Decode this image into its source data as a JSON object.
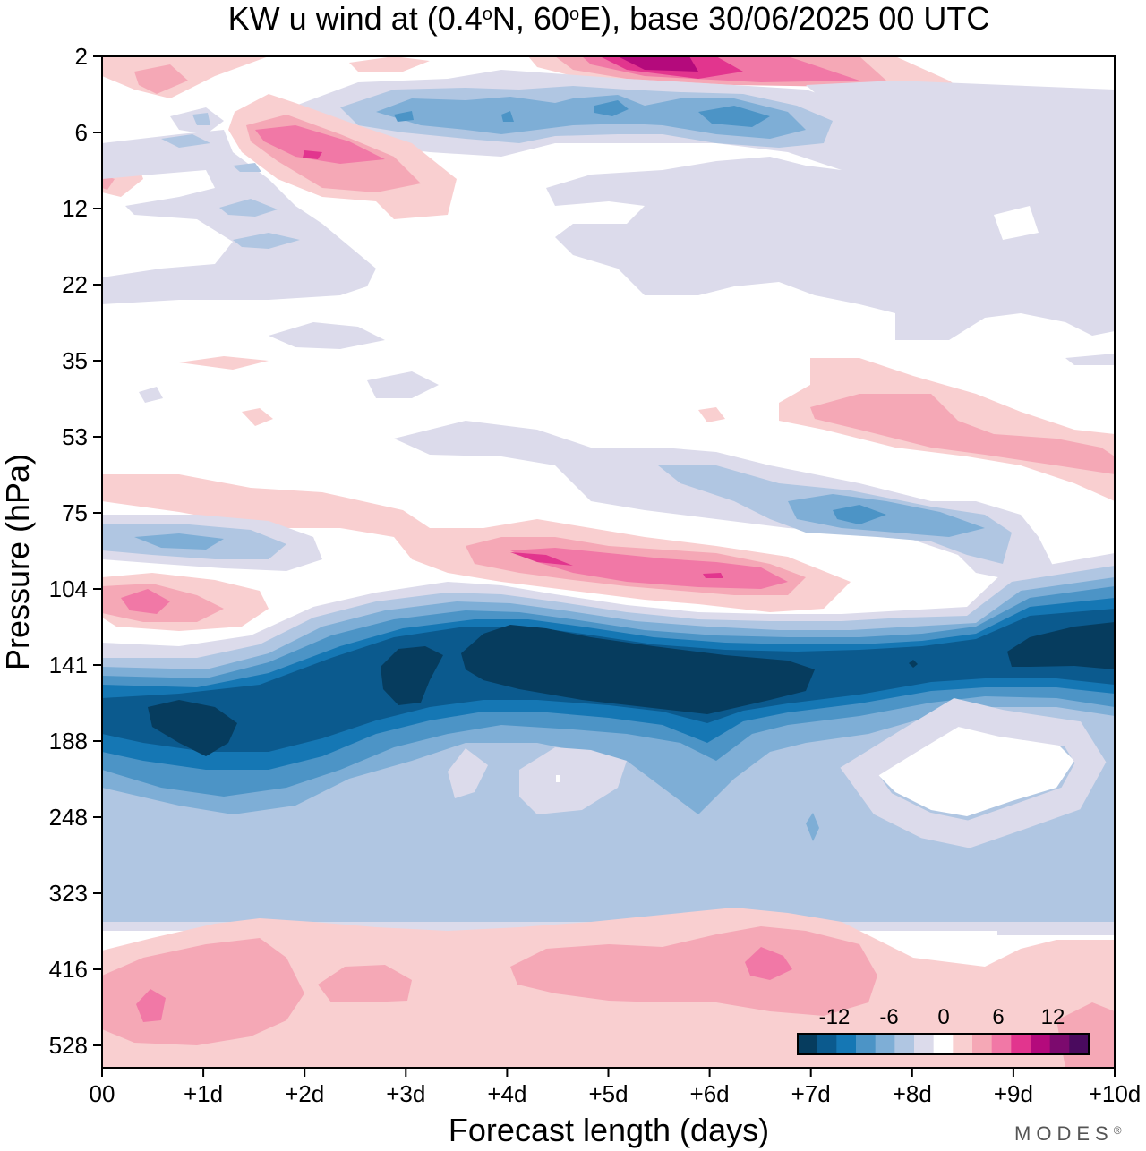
{
  "chart_data": {
    "type": "heatmap",
    "title": "KW u wind at (0.4°N, 60°E),  base 30/06/2025  00 UTC",
    "title_parts": {
      "prefix": "KW u wind at (0.4",
      "deg1": "o",
      "mid": "N, 60",
      "deg2": "o",
      "suffix": "E),  base 30/06/2025  00 UTC"
    },
    "xlabel": "Forecast length (days)",
    "ylabel": "Pressure (hPa)",
    "x_ticks": [
      "00",
      "+1d",
      "+2d",
      "+3d",
      "+4d",
      "+5d",
      "+6d",
      "+7d",
      "+8d",
      "+9d",
      "+10d"
    ],
    "x_range_days": [
      0,
      10
    ],
    "y_ticks": [
      "2",
      "6",
      "12",
      "22",
      "35",
      "53",
      "75",
      "104",
      "141",
      "188",
      "248",
      "323",
      "416",
      "528"
    ],
    "y_axis_order": "pressure increases downward, 2 hPa at top",
    "colorbar": {
      "tick_labels": [
        "-12",
        "-6",
        "0",
        "6",
        "12"
      ],
      "colors": [
        "#063c5e",
        "#0b5a8e",
        "#1577b4",
        "#4c94c6",
        "#7eaed6",
        "#b0c6e2",
        "#dcdbeb",
        "#ffffff",
        "#f9cfd0",
        "#f5a8b6",
        "#f178a6",
        "#e2358e",
        "#b40a7c",
        "#7c0a6e",
        "#4a0a5e"
      ]
    },
    "features": [
      {
        "name": "Easterly jet core (< -12 m/s)",
        "pressure_hPa": [
          125,
          175
        ],
        "days": [
          0.4,
          10
        ]
      },
      {
        "name": "Upper-troposphere easterlies",
        "pressure_hPa": [
          160,
          330
        ],
        "days": [
          0,
          10
        ]
      },
      {
        "name": "Lower-troposphere westerlies (3-9 m/s)",
        "pressure_hPa": [
          380,
          540
        ],
        "days": [
          0,
          10
        ]
      },
      {
        "name": "Westerly band near 90 hPa",
        "pressure_hPa": [
          85,
          105
        ],
        "days": [
          3.5,
          7
        ]
      },
      {
        "name": "Easterly band near 75 hPa",
        "pressure_hPa": [
          60,
          85
        ],
        "days": [
          5.5,
          9
        ]
      },
      {
        "name": "Westerly band near 45 hPa",
        "pressure_hPa": [
          38,
          60
        ],
        "days": [
          6.5,
          10
        ]
      },
      {
        "name": "Upper stratosphere westerlies",
        "pressure_hPa": [
          2,
          10
        ],
        "days": [
          1.3,
          3.4
        ]
      },
      {
        "name": "Upper stratosphere easterlies",
        "pressure_hPa": [
          3,
          7
        ],
        "days": [
          2.4,
          7.4
        ]
      },
      {
        "name": "Top-level westerlies (>12 m/s)",
        "pressure_hPa": [
          2,
          3
        ],
        "days": [
          4.5,
          8
        ]
      }
    ]
  },
  "branding": {
    "text": "MODES",
    "mark": "®"
  }
}
